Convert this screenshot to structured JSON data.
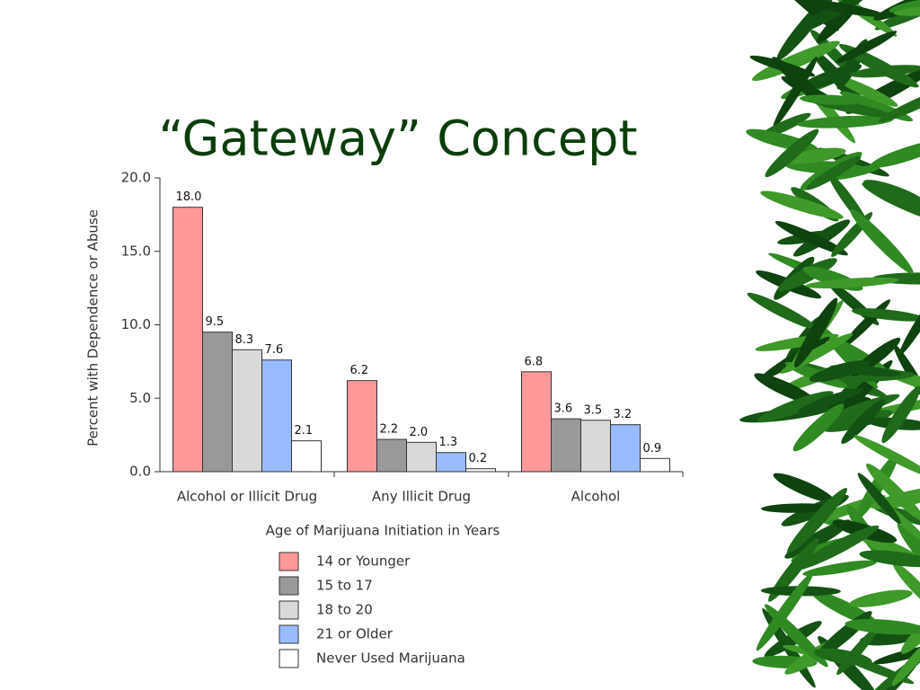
{
  "chart_data": {
    "type": "bar",
    "title": "“Gateway” Concept",
    "y_label": "Percent with Dependence or Abuse",
    "legend_title": "Age of Marijuana Initiation in Years",
    "categories": [
      "Alcohol or Illicit Drug",
      "Any Illicit Drug",
      "Alcohol"
    ],
    "series": [
      {
        "name": "14 or Younger",
        "color": "#ff9999",
        "values": [
          18,
          6.2,
          6.8
        ],
        "value_labels": [
          "18.0",
          "6.2",
          "6.8"
        ]
      },
      {
        "name": "15 to 17",
        "color": "#999999",
        "values": [
          9.5,
          2.2,
          3.6
        ],
        "value_labels": [
          "9.5",
          "2.2",
          "3.6"
        ]
      },
      {
        "name": "18 to 20",
        "color": "#d9d9d9",
        "values": [
          8.3,
          2,
          3.5
        ],
        "value_labels": [
          "8.3",
          "2.0",
          "3.5"
        ]
      },
      {
        "name": "21 or Older",
        "color": "#99bbff",
        "values": [
          7.6,
          1.3,
          3.2
        ],
        "value_labels": [
          "7.6",
          "1.3",
          "3.2"
        ]
      },
      {
        "name": "Never Used Marijuana",
        "color": "#ffffff",
        "values": [
          2.1,
          0.2,
          0.9
        ],
        "value_labels": [
          "2.1",
          "0.2",
          "0.9"
        ]
      }
    ],
    "ylim": [
      0,
      20
    ],
    "yticks": [
      {
        "value": 0,
        "label": "0.0"
      },
      {
        "value": 5,
        "label": "5.0"
      },
      {
        "value": 10,
        "label": "10.0"
      },
      {
        "value": 15,
        "label": "15.0"
      },
      {
        "value": 20,
        "label": "20.0"
      }
    ],
    "grid": false
  }
}
